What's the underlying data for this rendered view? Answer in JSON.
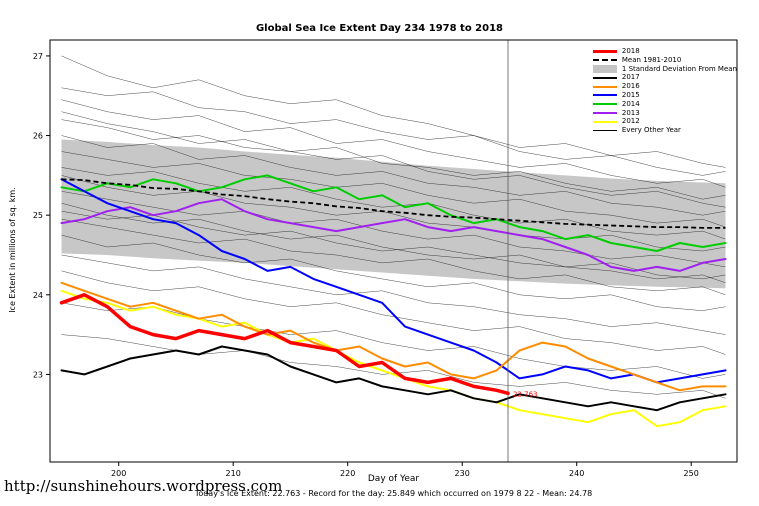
{
  "caption": "Today's Ice Extent: 22.763 - Record for the day: 25.849 which occurred on 1979 8 22 - Mean: 24.78",
  "footer_url": "http://sunshinehours.wordpress.com",
  "chart_data": {
    "type": "line",
    "title": "Global Sea Ice Extent Day 234 1978 to 2018",
    "xlabel": "Day of Year",
    "ylabel": "Ice Extent in millions of sq. km.",
    "xlim": [
      194,
      254
    ],
    "ylim": [
      21.9,
      27.2
    ],
    "x_ticks": [
      200,
      210,
      220,
      230,
      240,
      250
    ],
    "y_ticks": [
      23,
      24,
      25,
      26,
      27
    ],
    "grid": false,
    "legend_position": "top-right",
    "vline_x": 234,
    "annotation": {
      "x": 234,
      "y": 22.763,
      "text": "22.763",
      "color": "#FF0000"
    },
    "x_main": [
      195,
      197,
      199,
      201,
      203,
      205,
      207,
      209,
      211,
      213,
      215,
      217,
      219,
      221,
      223,
      225,
      227,
      229,
      231,
      233,
      235,
      237,
      239,
      241,
      243,
      245,
      247,
      249,
      251,
      253
    ],
    "mean": {
      "label": "Mean 1981-2010",
      "color": "#000000",
      "values": [
        25.45,
        25.44,
        25.4,
        25.38,
        25.34,
        25.33,
        25.3,
        25.26,
        25.24,
        25.2,
        25.17,
        25.15,
        25.11,
        25.09,
        25.05,
        25.03,
        25.0,
        24.98,
        24.97,
        24.95,
        24.93,
        24.91,
        24.89,
        24.88,
        24.87,
        24.86,
        24.85,
        24.85,
        24.84,
        24.84
      ]
    },
    "band": {
      "label": "1 Standard Deviation From Mean",
      "color": "#C4C4C4",
      "x": [
        195,
        199,
        203,
        207,
        211,
        215,
        219,
        223,
        227,
        231,
        235,
        239,
        243,
        247,
        251,
        253
      ],
      "upper": [
        25.95,
        25.92,
        25.88,
        25.85,
        25.8,
        25.76,
        25.72,
        25.67,
        25.62,
        25.58,
        25.54,
        25.5,
        25.46,
        25.43,
        25.41,
        25.4
      ],
      "lower": [
        24.52,
        24.5,
        24.46,
        24.43,
        24.4,
        24.36,
        24.32,
        24.28,
        24.24,
        24.2,
        24.17,
        24.14,
        24.12,
        24.1,
        24.09,
        24.08
      ]
    },
    "series": [
      {
        "name": "2018",
        "color": "#FF0000",
        "width": 3.5,
        "x": [
          195,
          197,
          199,
          201,
          203,
          205,
          207,
          209,
          211,
          213,
          215,
          217,
          219,
          221,
          223,
          225,
          227,
          229,
          231,
          233,
          234
        ],
        "values": [
          23.9,
          24.0,
          23.85,
          23.6,
          23.5,
          23.45,
          23.55,
          23.5,
          23.45,
          23.55,
          23.4,
          23.35,
          23.3,
          23.1,
          23.15,
          22.95,
          22.9,
          22.95,
          22.85,
          22.8,
          22.763
        ]
      },
      {
        "name": "2017",
        "color": "#000000",
        "width": 2,
        "values": [
          23.05,
          23.0,
          23.1,
          23.2,
          23.25,
          23.3,
          23.25,
          23.35,
          23.3,
          23.25,
          23.1,
          23.0,
          22.9,
          22.95,
          22.85,
          22.8,
          22.75,
          22.8,
          22.7,
          22.65,
          22.75,
          22.7,
          22.65,
          22.6,
          22.65,
          22.6,
          22.55,
          22.65,
          22.7,
          22.75
        ]
      },
      {
        "name": "2016",
        "color": "#FF8C00",
        "width": 2,
        "values": [
          24.15,
          24.05,
          23.95,
          23.85,
          23.9,
          23.8,
          23.7,
          23.75,
          23.6,
          23.5,
          23.55,
          23.4,
          23.3,
          23.35,
          23.2,
          23.1,
          23.15,
          23.0,
          22.95,
          23.05,
          23.3,
          23.4,
          23.35,
          23.2,
          23.1,
          23.0,
          22.9,
          22.8,
          22.85,
          22.85
        ]
      },
      {
        "name": "2015",
        "color": "#0000FF",
        "width": 2,
        "values": [
          25.45,
          25.3,
          25.15,
          25.05,
          24.95,
          24.9,
          24.75,
          24.55,
          24.45,
          24.3,
          24.35,
          24.2,
          24.1,
          24.0,
          23.9,
          23.6,
          23.5,
          23.4,
          23.3,
          23.15,
          22.95,
          23.0,
          23.1,
          23.05,
          22.95,
          23.0,
          22.9,
          22.95,
          23.0,
          23.05
        ]
      },
      {
        "name": "2014",
        "color": "#00CD00",
        "width": 2,
        "values": [
          25.35,
          25.3,
          25.4,
          25.35,
          25.45,
          25.4,
          25.3,
          25.35,
          25.45,
          25.5,
          25.4,
          25.3,
          25.35,
          25.2,
          25.25,
          25.1,
          25.15,
          25.0,
          24.9,
          24.95,
          24.85,
          24.8,
          24.7,
          24.75,
          24.65,
          24.6,
          24.55,
          24.65,
          24.6,
          24.65
        ]
      },
      {
        "name": "2013",
        "color": "#A020F0",
        "width": 2,
        "values": [
          24.9,
          24.95,
          25.05,
          25.1,
          25.0,
          25.05,
          25.15,
          25.2,
          25.05,
          24.95,
          24.9,
          24.85,
          24.8,
          24.85,
          24.9,
          24.95,
          24.85,
          24.8,
          24.85,
          24.8,
          24.75,
          24.7,
          24.6,
          24.5,
          24.35,
          24.3,
          24.35,
          24.3,
          24.4,
          24.45
        ]
      },
      {
        "name": "2012",
        "color": "#FFFF00",
        "width": 2,
        "values": [
          24.05,
          23.95,
          23.9,
          23.8,
          23.85,
          23.75,
          23.7,
          23.6,
          23.65,
          23.5,
          23.4,
          23.45,
          23.3,
          23.15,
          23.05,
          22.95,
          22.85,
          22.8,
          22.7,
          22.65,
          22.55,
          22.5,
          22.45,
          22.4,
          22.5,
          22.55,
          22.35,
          22.4,
          22.55,
          22.6
        ]
      }
    ],
    "every_other_year": {
      "label": "Every Other Year",
      "color": "#1a1a1a",
      "width": 0.5,
      "x": [
        195,
        199,
        203,
        207,
        211,
        215,
        219,
        223,
        227,
        231,
        235,
        239,
        243,
        247,
        251,
        253
      ],
      "lines": [
        [
          27.0,
          26.75,
          26.6,
          26.7,
          26.5,
          26.4,
          26.45,
          26.25,
          26.15,
          26.0,
          25.85,
          25.9,
          25.75,
          25.8,
          25.65,
          25.6
        ],
        [
          26.6,
          26.5,
          26.55,
          26.35,
          26.3,
          26.15,
          26.2,
          26.05,
          25.95,
          26.0,
          25.8,
          25.7,
          25.75,
          25.6,
          25.5,
          25.55
        ],
        [
          26.45,
          26.3,
          26.2,
          26.25,
          26.05,
          26.1,
          25.9,
          25.95,
          25.8,
          25.7,
          25.6,
          25.65,
          25.5,
          25.4,
          25.45,
          25.35
        ],
        [
          26.3,
          26.15,
          26.05,
          25.9,
          25.95,
          25.8,
          25.7,
          25.75,
          25.55,
          25.45,
          25.5,
          25.35,
          25.25,
          25.3,
          25.15,
          25.1
        ],
        [
          26.2,
          26.1,
          25.95,
          26.0,
          25.85,
          25.8,
          25.85,
          25.65,
          25.6,
          25.5,
          25.55,
          25.4,
          25.3,
          25.35,
          25.2,
          25.25
        ],
        [
          26.0,
          25.85,
          25.9,
          25.7,
          25.75,
          25.6,
          25.5,
          25.55,
          25.4,
          25.35,
          25.25,
          25.3,
          25.15,
          25.1,
          25.0,
          25.05
        ],
        [
          25.8,
          25.7,
          25.6,
          25.65,
          25.5,
          25.45,
          25.35,
          25.4,
          25.25,
          25.15,
          25.2,
          25.05,
          25.0,
          24.9,
          24.95,
          24.85
        ],
        [
          25.6,
          25.5,
          25.55,
          25.4,
          25.3,
          25.35,
          25.2,
          25.1,
          25.15,
          25.0,
          24.9,
          24.95,
          24.8,
          24.75,
          24.8,
          24.7
        ],
        [
          25.5,
          25.35,
          25.25,
          25.3,
          25.15,
          25.1,
          25.0,
          25.05,
          24.9,
          24.85,
          24.75,
          24.7,
          24.75,
          24.6,
          24.55,
          24.6
        ],
        [
          25.3,
          25.2,
          25.1,
          25.0,
          25.05,
          24.9,
          24.95,
          24.8,
          24.7,
          24.75,
          24.6,
          24.55,
          24.45,
          24.5,
          24.4,
          24.35
        ],
        [
          25.15,
          25.0,
          24.9,
          24.95,
          24.8,
          24.7,
          24.75,
          24.6,
          24.5,
          24.45,
          24.5,
          24.35,
          24.3,
          24.2,
          24.25,
          24.15
        ],
        [
          25.05,
          24.95,
          25.0,
          24.85,
          24.75,
          24.8,
          24.65,
          24.55,
          24.6,
          24.5,
          24.4,
          24.35,
          24.4,
          24.25,
          24.2,
          24.25
        ],
        [
          24.95,
          24.85,
          24.75,
          24.65,
          24.7,
          24.55,
          24.5,
          24.4,
          24.45,
          24.3,
          24.2,
          24.25,
          24.1,
          24.05,
          24.1,
          24.0
        ],
        [
          24.75,
          24.6,
          24.65,
          24.5,
          24.4,
          24.45,
          24.3,
          24.2,
          24.1,
          24.15,
          24.0,
          23.95,
          24.0,
          23.85,
          23.8,
          23.85
        ],
        [
          24.5,
          24.4,
          24.3,
          24.35,
          24.2,
          24.1,
          24.0,
          24.05,
          23.9,
          23.85,
          23.75,
          23.7,
          23.6,
          23.65,
          23.55,
          23.5
        ],
        [
          24.3,
          24.15,
          24.05,
          24.1,
          23.95,
          23.85,
          23.9,
          23.75,
          23.65,
          23.55,
          23.6,
          23.45,
          23.4,
          23.3,
          23.35,
          23.25
        ],
        [
          23.9,
          23.8,
          23.85,
          23.7,
          23.6,
          23.5,
          23.55,
          23.4,
          23.3,
          23.35,
          23.2,
          23.1,
          23.05,
          23.1,
          22.95,
          23.0
        ],
        [
          23.5,
          23.45,
          23.35,
          23.25,
          23.3,
          23.15,
          23.1,
          23.0,
          23.05,
          22.9,
          22.85,
          22.9,
          22.8,
          22.75,
          22.8,
          22.7
        ]
      ]
    },
    "legend": [
      {
        "label": "2018",
        "color": "#FF0000",
        "style": "line-thick"
      },
      {
        "label": "Mean 1981-2010",
        "color": "#000000",
        "style": "line-dashed"
      },
      {
        "label": "1 Standard Deviation From Mean",
        "color": "#C4C4C4",
        "style": "box"
      },
      {
        "label": "2017",
        "color": "#000000",
        "style": "line"
      },
      {
        "label": "2016",
        "color": "#FF8C00",
        "style": "line"
      },
      {
        "label": "2015",
        "color": "#0000FF",
        "style": "line"
      },
      {
        "label": "2014",
        "color": "#00CD00",
        "style": "line"
      },
      {
        "label": "2013",
        "color": "#A020F0",
        "style": "line"
      },
      {
        "label": "2012",
        "color": "#FFFF00",
        "style": "line"
      },
      {
        "label": "Every Other Year",
        "color": "#000000",
        "style": "line-thin"
      }
    ]
  }
}
